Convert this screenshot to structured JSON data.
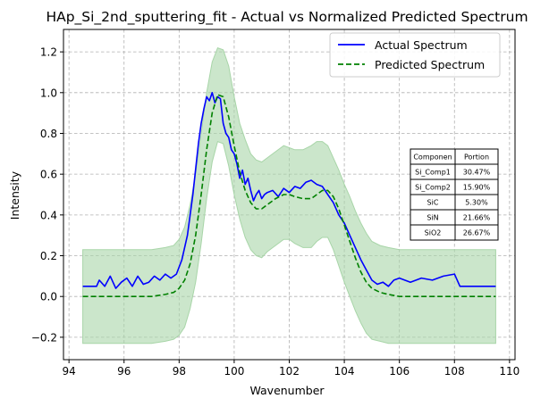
{
  "chart_data": {
    "type": "line",
    "title": "HAp_Si_2nd_sputtering_fit - Actual vs Normalized Predicted Spectrum",
    "xlabel": "Wavenumber",
    "ylabel": "Intensity",
    "xlim": [
      93.8,
      110.2
    ],
    "ylim": [
      -0.31,
      1.31
    ],
    "x_ticks": [
      94,
      96,
      98,
      100,
      102,
      104,
      106,
      108,
      110
    ],
    "x_tick_labels": [
      "94",
      "96",
      "98",
      "100",
      "102",
      "104",
      "106",
      "108",
      "110"
    ],
    "y_ticks": [
      -0.2,
      0.0,
      0.2,
      0.4,
      0.6,
      0.8,
      1.0,
      1.2
    ],
    "y_tick_labels": [
      "−0.2",
      "0.0",
      "0.2",
      "0.4",
      "0.6",
      "0.8",
      "1.0",
      "1.2"
    ],
    "grid": true,
    "legend_position": "top-right",
    "colors": {
      "actual": "#0000ff",
      "predicted": "#008000",
      "band": "#a8d5a8"
    },
    "series": [
      {
        "name": "Actual Spectrum",
        "style": "solid",
        "x": [
          94.5,
          95.0,
          95.1,
          95.3,
          95.5,
          95.7,
          95.9,
          96.1,
          96.3,
          96.5,
          96.7,
          96.9,
          97.1,
          97.3,
          97.5,
          97.7,
          97.9,
          98.1,
          98.3,
          98.5,
          98.7,
          98.8,
          98.9,
          99.0,
          99.1,
          99.2,
          99.3,
          99.4,
          99.5,
          99.6,
          99.7,
          99.8,
          99.9,
          100.0,
          100.1,
          100.2,
          100.3,
          100.4,
          100.5,
          100.6,
          100.7,
          100.8,
          100.9,
          101.0,
          101.1,
          101.2,
          101.4,
          101.6,
          101.8,
          102.0,
          102.2,
          102.4,
          102.6,
          102.8,
          103.0,
          103.2,
          103.4,
          103.6,
          103.8,
          104.0,
          104.2,
          104.4,
          104.6,
          104.8,
          105.0,
          105.2,
          105.4,
          105.6,
          105.8,
          106.0,
          106.4,
          106.8,
          107.2,
          107.6,
          108.0,
          108.2,
          109.5
        ],
        "y": [
          0.05,
          0.05,
          0.08,
          0.05,
          0.1,
          0.04,
          0.07,
          0.09,
          0.05,
          0.1,
          0.06,
          0.07,
          0.1,
          0.08,
          0.11,
          0.09,
          0.11,
          0.18,
          0.3,
          0.5,
          0.75,
          0.85,
          0.92,
          0.98,
          0.96,
          1.0,
          0.95,
          0.98,
          0.97,
          0.85,
          0.8,
          0.78,
          0.72,
          0.7,
          0.65,
          0.58,
          0.62,
          0.55,
          0.58,
          0.52,
          0.47,
          0.5,
          0.52,
          0.48,
          0.5,
          0.51,
          0.52,
          0.49,
          0.53,
          0.51,
          0.54,
          0.53,
          0.56,
          0.57,
          0.55,
          0.54,
          0.5,
          0.46,
          0.4,
          0.36,
          0.3,
          0.24,
          0.18,
          0.13,
          0.08,
          0.06,
          0.07,
          0.05,
          0.08,
          0.09,
          0.07,
          0.09,
          0.08,
          0.1,
          0.11,
          0.05,
          0.05
        ]
      },
      {
        "name": "Predicted Spectrum",
        "style": "dashed",
        "x": [
          94.5,
          96.0,
          97.0,
          97.5,
          97.8,
          98.0,
          98.2,
          98.4,
          98.6,
          98.8,
          99.0,
          99.2,
          99.4,
          99.6,
          99.8,
          100.0,
          100.2,
          100.4,
          100.6,
          100.8,
          101.0,
          101.2,
          101.5,
          101.8,
          102.0,
          102.2,
          102.5,
          102.8,
          103.0,
          103.2,
          103.4,
          103.6,
          103.8,
          104.0,
          104.2,
          104.4,
          104.6,
          104.8,
          105.0,
          105.3,
          105.6,
          106.0,
          107.0,
          108.0,
          109.5
        ],
        "y": [
          0.0,
          0.0,
          0.0,
          0.01,
          0.02,
          0.04,
          0.08,
          0.16,
          0.3,
          0.5,
          0.72,
          0.9,
          0.99,
          0.98,
          0.88,
          0.74,
          0.61,
          0.52,
          0.46,
          0.43,
          0.43,
          0.45,
          0.48,
          0.5,
          0.5,
          0.49,
          0.48,
          0.48,
          0.5,
          0.52,
          0.52,
          0.49,
          0.43,
          0.35,
          0.27,
          0.19,
          0.12,
          0.07,
          0.04,
          0.02,
          0.01,
          0.0,
          0.0,
          0.0,
          0.0
        ]
      }
    ],
    "band": {
      "x": [
        94.5,
        96.0,
        97.0,
        97.5,
        97.8,
        98.0,
        98.2,
        98.4,
        98.6,
        98.8,
        99.0,
        99.2,
        99.4,
        99.6,
        99.8,
        100.0,
        100.2,
        100.4,
        100.6,
        100.8,
        101.0,
        101.2,
        101.5,
        101.8,
        102.0,
        102.2,
        102.5,
        102.8,
        103.0,
        103.2,
        103.4,
        103.6,
        103.8,
        104.0,
        104.2,
        104.4,
        104.6,
        104.8,
        105.0,
        105.3,
        105.6,
        106.0,
        107.0,
        108.0,
        109.5
      ],
      "upper": [
        0.23,
        0.23,
        0.23,
        0.24,
        0.25,
        0.28,
        0.34,
        0.45,
        0.6,
        0.8,
        1.0,
        1.15,
        1.22,
        1.21,
        1.13,
        0.98,
        0.85,
        0.77,
        0.7,
        0.67,
        0.66,
        0.68,
        0.71,
        0.74,
        0.73,
        0.72,
        0.72,
        0.74,
        0.76,
        0.76,
        0.74,
        0.68,
        0.62,
        0.55,
        0.49,
        0.42,
        0.36,
        0.31,
        0.27,
        0.25,
        0.24,
        0.23,
        0.23,
        0.23,
        0.23
      ],
      "lower": [
        -0.23,
        -0.23,
        -0.23,
        -0.22,
        -0.21,
        -0.19,
        -0.15,
        -0.06,
        0.07,
        0.26,
        0.48,
        0.66,
        0.76,
        0.75,
        0.64,
        0.5,
        0.38,
        0.29,
        0.23,
        0.2,
        0.19,
        0.22,
        0.25,
        0.28,
        0.28,
        0.26,
        0.24,
        0.24,
        0.27,
        0.29,
        0.29,
        0.23,
        0.15,
        0.07,
        0.0,
        -0.07,
        -0.13,
        -0.18,
        -0.21,
        -0.22,
        -0.23,
        -0.23,
        -0.23,
        -0.23,
        -0.23
      ]
    },
    "table": {
      "headers": [
        "Componen",
        "Portion"
      ],
      "rows": [
        [
          "Si_Comp1",
          "30.47%"
        ],
        [
          "Si_Comp2",
          "15.90%"
        ],
        [
          "SiC",
          "5.30%"
        ],
        [
          "SiN",
          "21.66%"
        ],
        [
          "SiO2",
          "26.67%"
        ]
      ]
    }
  }
}
